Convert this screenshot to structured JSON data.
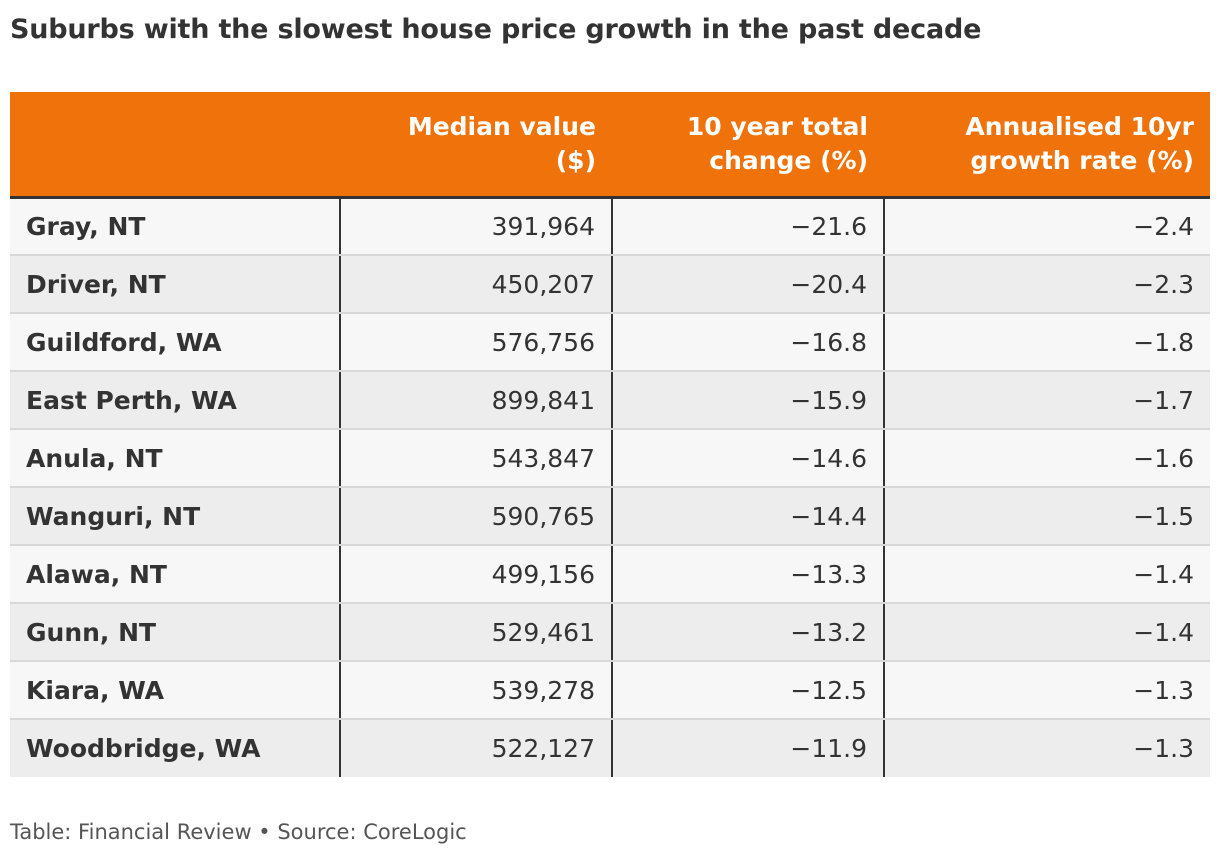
{
  "title": "Suburbs with the slowest house price growth in the past decade",
  "table": {
    "columns": [
      {
        "line1": "",
        "line2": ""
      },
      {
        "line1": "Median value",
        "line2": "($)"
      },
      {
        "line1": "10 year total",
        "line2": "change (%)"
      },
      {
        "line1": "Annualised 10yr",
        "line2": "growth rate (%)"
      }
    ],
    "rows": [
      {
        "suburb": "Gray, NT",
        "median": "391,964",
        "total_change": "−21.6",
        "annual_rate": "−2.4"
      },
      {
        "suburb": "Driver, NT",
        "median": "450,207",
        "total_change": "−20.4",
        "annual_rate": "−2.3"
      },
      {
        "suburb": "Guildford, WA",
        "median": "576,756",
        "total_change": "−16.8",
        "annual_rate": "−1.8"
      },
      {
        "suburb": "East Perth, WA",
        "median": "899,841",
        "total_change": "−15.9",
        "annual_rate": "−1.7"
      },
      {
        "suburb": "Anula, NT",
        "median": "543,847",
        "total_change": "−14.6",
        "annual_rate": "−1.6"
      },
      {
        "suburb": "Wanguri, NT",
        "median": "590,765",
        "total_change": "−14.4",
        "annual_rate": "−1.5"
      },
      {
        "suburb": "Alawa, NT",
        "median": "499,156",
        "total_change": "−13.3",
        "annual_rate": "−1.4"
      },
      {
        "suburb": "Gunn, NT",
        "median": "529,461",
        "total_change": "−13.2",
        "annual_rate": "−1.4"
      },
      {
        "suburb": "Kiara, WA",
        "median": "539,278",
        "total_change": "−12.5",
        "annual_rate": "−1.3"
      },
      {
        "suburb": "Woodbridge, WA",
        "median": "522,127",
        "total_change": "−11.9",
        "annual_rate": "−1.3"
      }
    ]
  },
  "footer": "Table: Financial Review • Source: CoreLogic",
  "colors": {
    "header_background": "#f0720b",
    "header_text": "#ffffff",
    "row_odd": "#f7f7f7",
    "row_even": "#ededed",
    "text": "#333333"
  },
  "chart_data": {
    "type": "table",
    "title": "Suburbs with the slowest house price growth in the past decade",
    "columns": [
      "",
      "Median value ($)",
      "10 year total change (%)",
      "Annualised 10yr growth rate (%)"
    ],
    "rows": [
      [
        "Gray, NT",
        391964,
        -21.6,
        -2.4
      ],
      [
        "Driver, NT",
        450207,
        -20.4,
        -2.3
      ],
      [
        "Guildford, WA",
        576756,
        -16.8,
        -1.8
      ],
      [
        "East Perth, WA",
        899841,
        -15.9,
        -1.7
      ],
      [
        "Anula, NT",
        543847,
        -14.6,
        -1.6
      ],
      [
        "Wanguri, NT",
        590765,
        -14.4,
        -1.5
      ],
      [
        "Alawa, NT",
        499156,
        -13.3,
        -1.4
      ],
      [
        "Gunn, NT",
        529461,
        -13.2,
        -1.4
      ],
      [
        "Kiara, WA",
        539278,
        -12.5,
        -1.3
      ],
      [
        "Woodbridge, WA",
        522127,
        -11.9,
        -1.3
      ]
    ],
    "source": "Table: Financial Review • Source: CoreLogic"
  }
}
